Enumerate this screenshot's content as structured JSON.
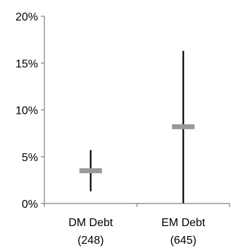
{
  "chart_data": {
    "type": "range",
    "title": "",
    "xlabel": "",
    "ylabel": "",
    "ylim": [
      0,
      20
    ],
    "yticks": [
      0,
      5,
      10,
      15,
      20
    ],
    "ytick_labels": [
      "0%",
      "5%",
      "10%",
      "15%",
      "20%"
    ],
    "categories": [
      {
        "line1": "DM Debt",
        "line2": "(248)"
      },
      {
        "line1": "EM Debt",
        "line2": "(645)"
      }
    ],
    "series": [
      {
        "values": [
          {
            "low": 1.3,
            "high": 5.7,
            "mid": 3.5
          },
          {
            "low": 0.0,
            "high": 16.3,
            "mid": 8.2
          }
        ]
      }
    ],
    "grid": false,
    "legend": "none",
    "colors": {
      "axis": "#7f7f7f",
      "range_line": "#000000",
      "marker": "#999999"
    }
  }
}
